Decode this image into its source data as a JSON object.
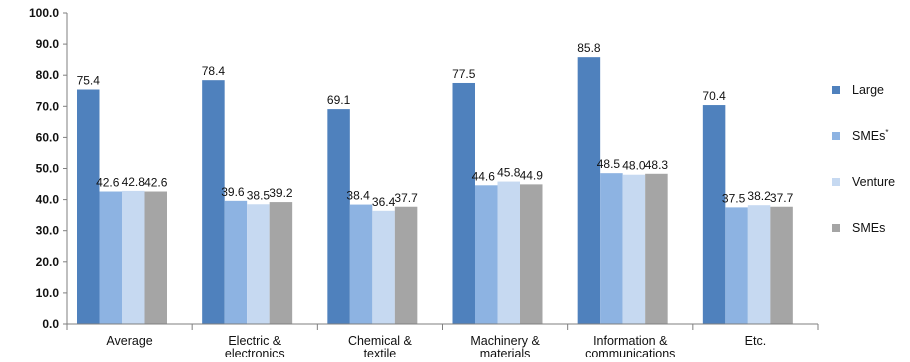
{
  "chart_data": {
    "type": "bar",
    "title": "",
    "xlabel": "",
    "ylabel": "",
    "ylim": [
      0,
      100
    ],
    "yticks": [
      "0.0",
      "10.0",
      "20.0",
      "30.0",
      "40.0",
      "50.0",
      "60.0",
      "70.0",
      "80.0",
      "90.0",
      "100.0"
    ],
    "grid": false,
    "legend_position": "right",
    "categories": [
      [
        "Average"
      ],
      [
        "Electric &",
        "electronics"
      ],
      [
        "Chemical &",
        "textile"
      ],
      [
        "Machinery &",
        "materials"
      ],
      [
        "Information &",
        "communications"
      ],
      [
        "Etc."
      ]
    ],
    "series": [
      {
        "name": "Large",
        "superscript": "",
        "color": "#4f81bd",
        "values": [
          75.4,
          78.4,
          69.1,
          77.5,
          85.8,
          70.4
        ],
        "labels": [
          "75.4",
          "78.4",
          "69.1",
          "77.5",
          "85.8",
          "70.4"
        ]
      },
      {
        "name": "SMEs",
        "superscript": "*",
        "color": "#8db3e2",
        "values": [
          42.6,
          39.6,
          38.4,
          44.6,
          48.5,
          37.5
        ],
        "labels": [
          "42.6",
          "39.6",
          "38.4",
          "44.6",
          "48.5",
          "37.5"
        ]
      },
      {
        "name": "Venture",
        "superscript": "",
        "color": "#c6d9f1",
        "values": [
          42.8,
          38.5,
          36.4,
          45.8,
          48.0,
          38.2
        ],
        "labels": [
          "42.8",
          "38.5",
          "36.4",
          "45.8",
          "48.0",
          "38.2"
        ]
      },
      {
        "name": "SMEs",
        "superscript": "",
        "color": "#a5a5a5",
        "values": [
          42.6,
          39.2,
          37.7,
          44.9,
          48.3,
          37.7
        ],
        "labels": [
          "42.6",
          "39.2",
          "37.7",
          "44.9",
          "48.3",
          "37.7"
        ]
      }
    ]
  }
}
